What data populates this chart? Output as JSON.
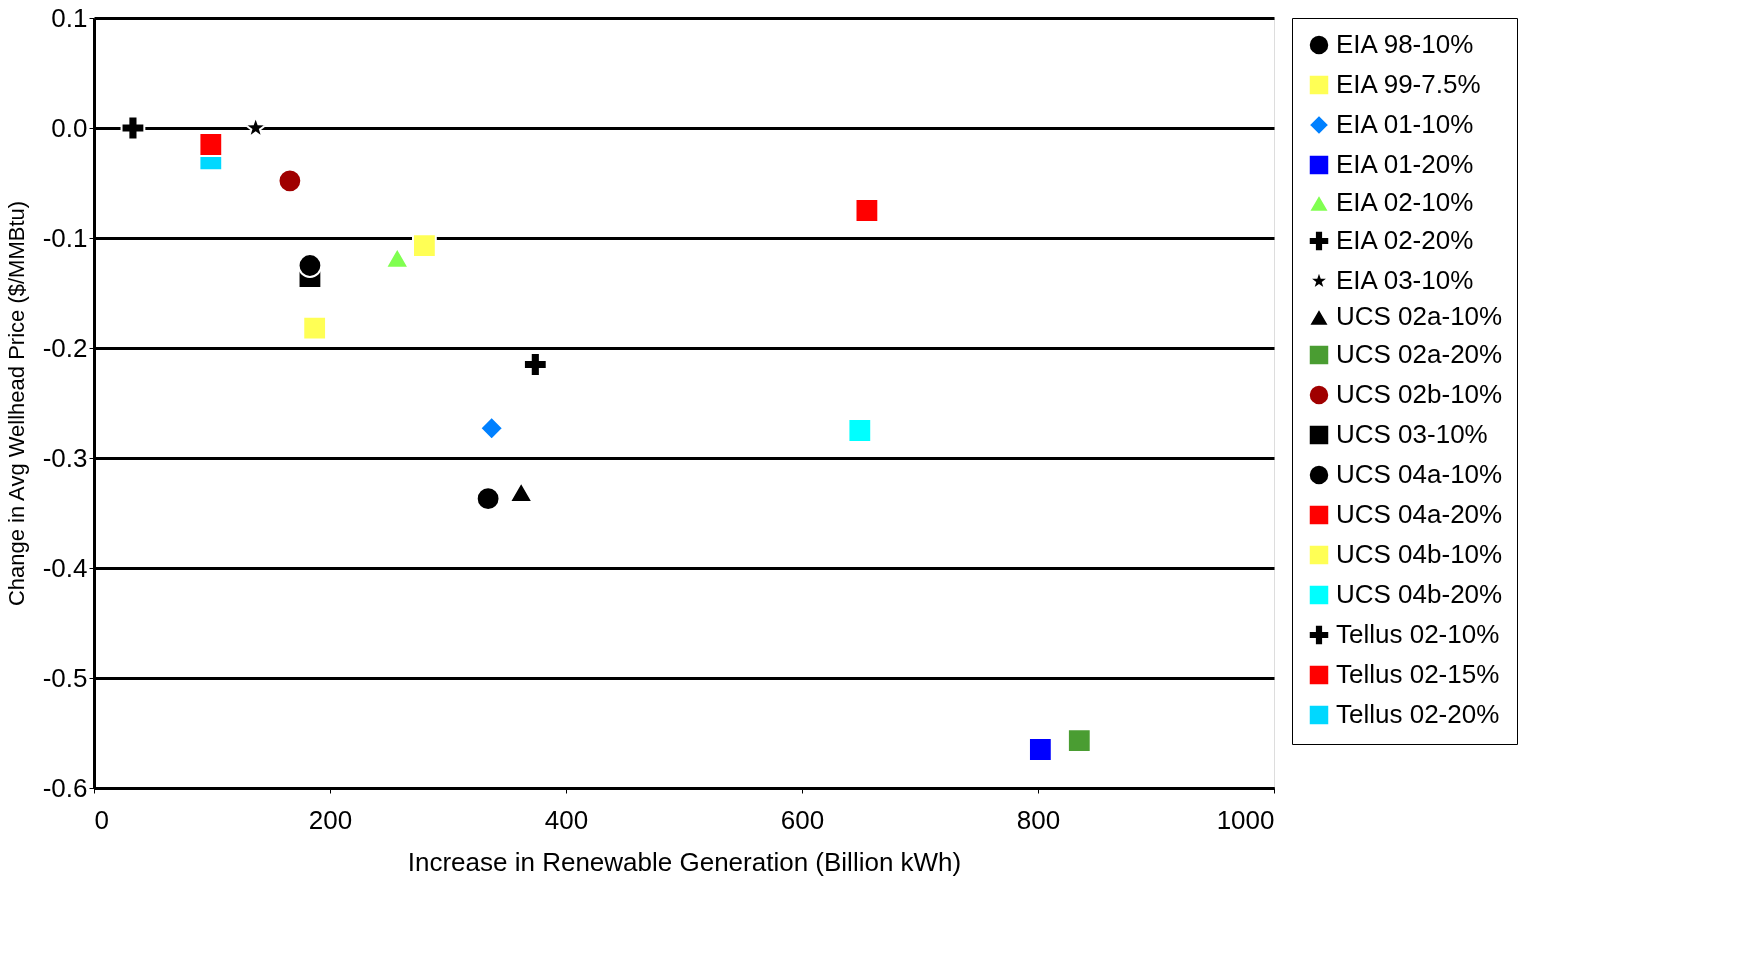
{
  "chart_data": {
    "type": "scatter",
    "xlabel": "Increase in Renewable Generation (Billion kWh)",
    "ylabel": "Change in Avg Wellhead Price ($/MMBtu)",
    "xlim": [
      0,
      1000
    ],
    "xticks": [
      0,
      200,
      400,
      600,
      800,
      1000
    ],
    "ylim": [
      -0.6,
      0.1
    ],
    "yticks": [
      0.1,
      {
        "value": 0,
        "label": "0.0"
      },
      -0.1,
      -0.2,
      -0.3,
      -0.4,
      -0.5,
      -0.6
    ],
    "grid": "y",
    "legend": "right",
    "series": [
      {
        "name": "EIA 98-10%",
        "color": "#000000",
        "marker": "circle",
        "x": [
          183
        ],
        "values": [
          -0.125
        ]
      },
      {
        "name": "EIA 99-7.5%",
        "color": "#ffff55",
        "marker": "square",
        "x": [
          187
        ],
        "values": [
          -0.182
        ]
      },
      {
        "name": "EIA 01-10%",
        "color": "#0080ff",
        "marker": "diamond",
        "x": [
          337
        ],
        "values": [
          -0.273
        ]
      },
      {
        "name": "EIA 01-20%",
        "color": "#0000ff",
        "marker": "square",
        "x": [
          802
        ],
        "values": [
          -0.565
        ]
      },
      {
        "name": "EIA 02-10%",
        "color": "#80ff50",
        "marker": "triangle",
        "x": [
          257
        ],
        "values": [
          -0.118
        ]
      },
      {
        "name": "EIA 02-20%",
        "color": "#000000",
        "marker": "cross",
        "x": [
          374
        ],
        "values": [
          -0.215
        ]
      },
      {
        "name": "EIA 03-10%",
        "color": "#000000",
        "marker": "star",
        "x": [
          137
        ],
        "values": [
          0.0
        ]
      },
      {
        "name": "UCS 02a-10%",
        "color": "#000000",
        "marker": "triangle",
        "x": [
          362
        ],
        "values": [
          -0.331
        ]
      },
      {
        "name": "UCS 02a-20%",
        "color": "#4a9d32",
        "marker": "square",
        "x": [
          835
        ],
        "values": [
          -0.557
        ]
      },
      {
        "name": "UCS 02b-10%",
        "color": "#a00000",
        "marker": "circle",
        "x": [
          166
        ],
        "values": [
          -0.048
        ]
      },
      {
        "name": "UCS 03-10%",
        "color": "#000000",
        "marker": "square",
        "x": [
          183
        ],
        "values": [
          -0.135
        ]
      },
      {
        "name": "UCS 04a-10%",
        "color": "#000000",
        "marker": "circle",
        "x": [
          334
        ],
        "values": [
          -0.337
        ]
      },
      {
        "name": "UCS 04a-20%",
        "color": "#ff0000",
        "marker": "square",
        "x": [
          655
        ],
        "values": [
          -0.075
        ]
      },
      {
        "name": "UCS 04b-10%",
        "color": "#ffff55",
        "marker": "square",
        "x": [
          280
        ],
        "values": [
          -0.107
        ]
      },
      {
        "name": "UCS 04b-20%",
        "color": "#00ffff",
        "marker": "square",
        "x": [
          649
        ],
        "values": [
          -0.275
        ]
      },
      {
        "name": "Tellus 02-10%",
        "color": "#000000",
        "marker": "cross",
        "x": [
          33
        ],
        "values": [
          0.0
        ]
      },
      {
        "name": "Tellus 02-15%",
        "color": "#ff0000",
        "marker": "square",
        "x": [
          99
        ],
        "values": [
          -0.015
        ]
      },
      {
        "name": "Tellus 02-20%",
        "color": "#00d8ff",
        "marker": "square",
        "x": [
          99
        ],
        "values": [
          -0.028
        ]
      }
    ]
  }
}
